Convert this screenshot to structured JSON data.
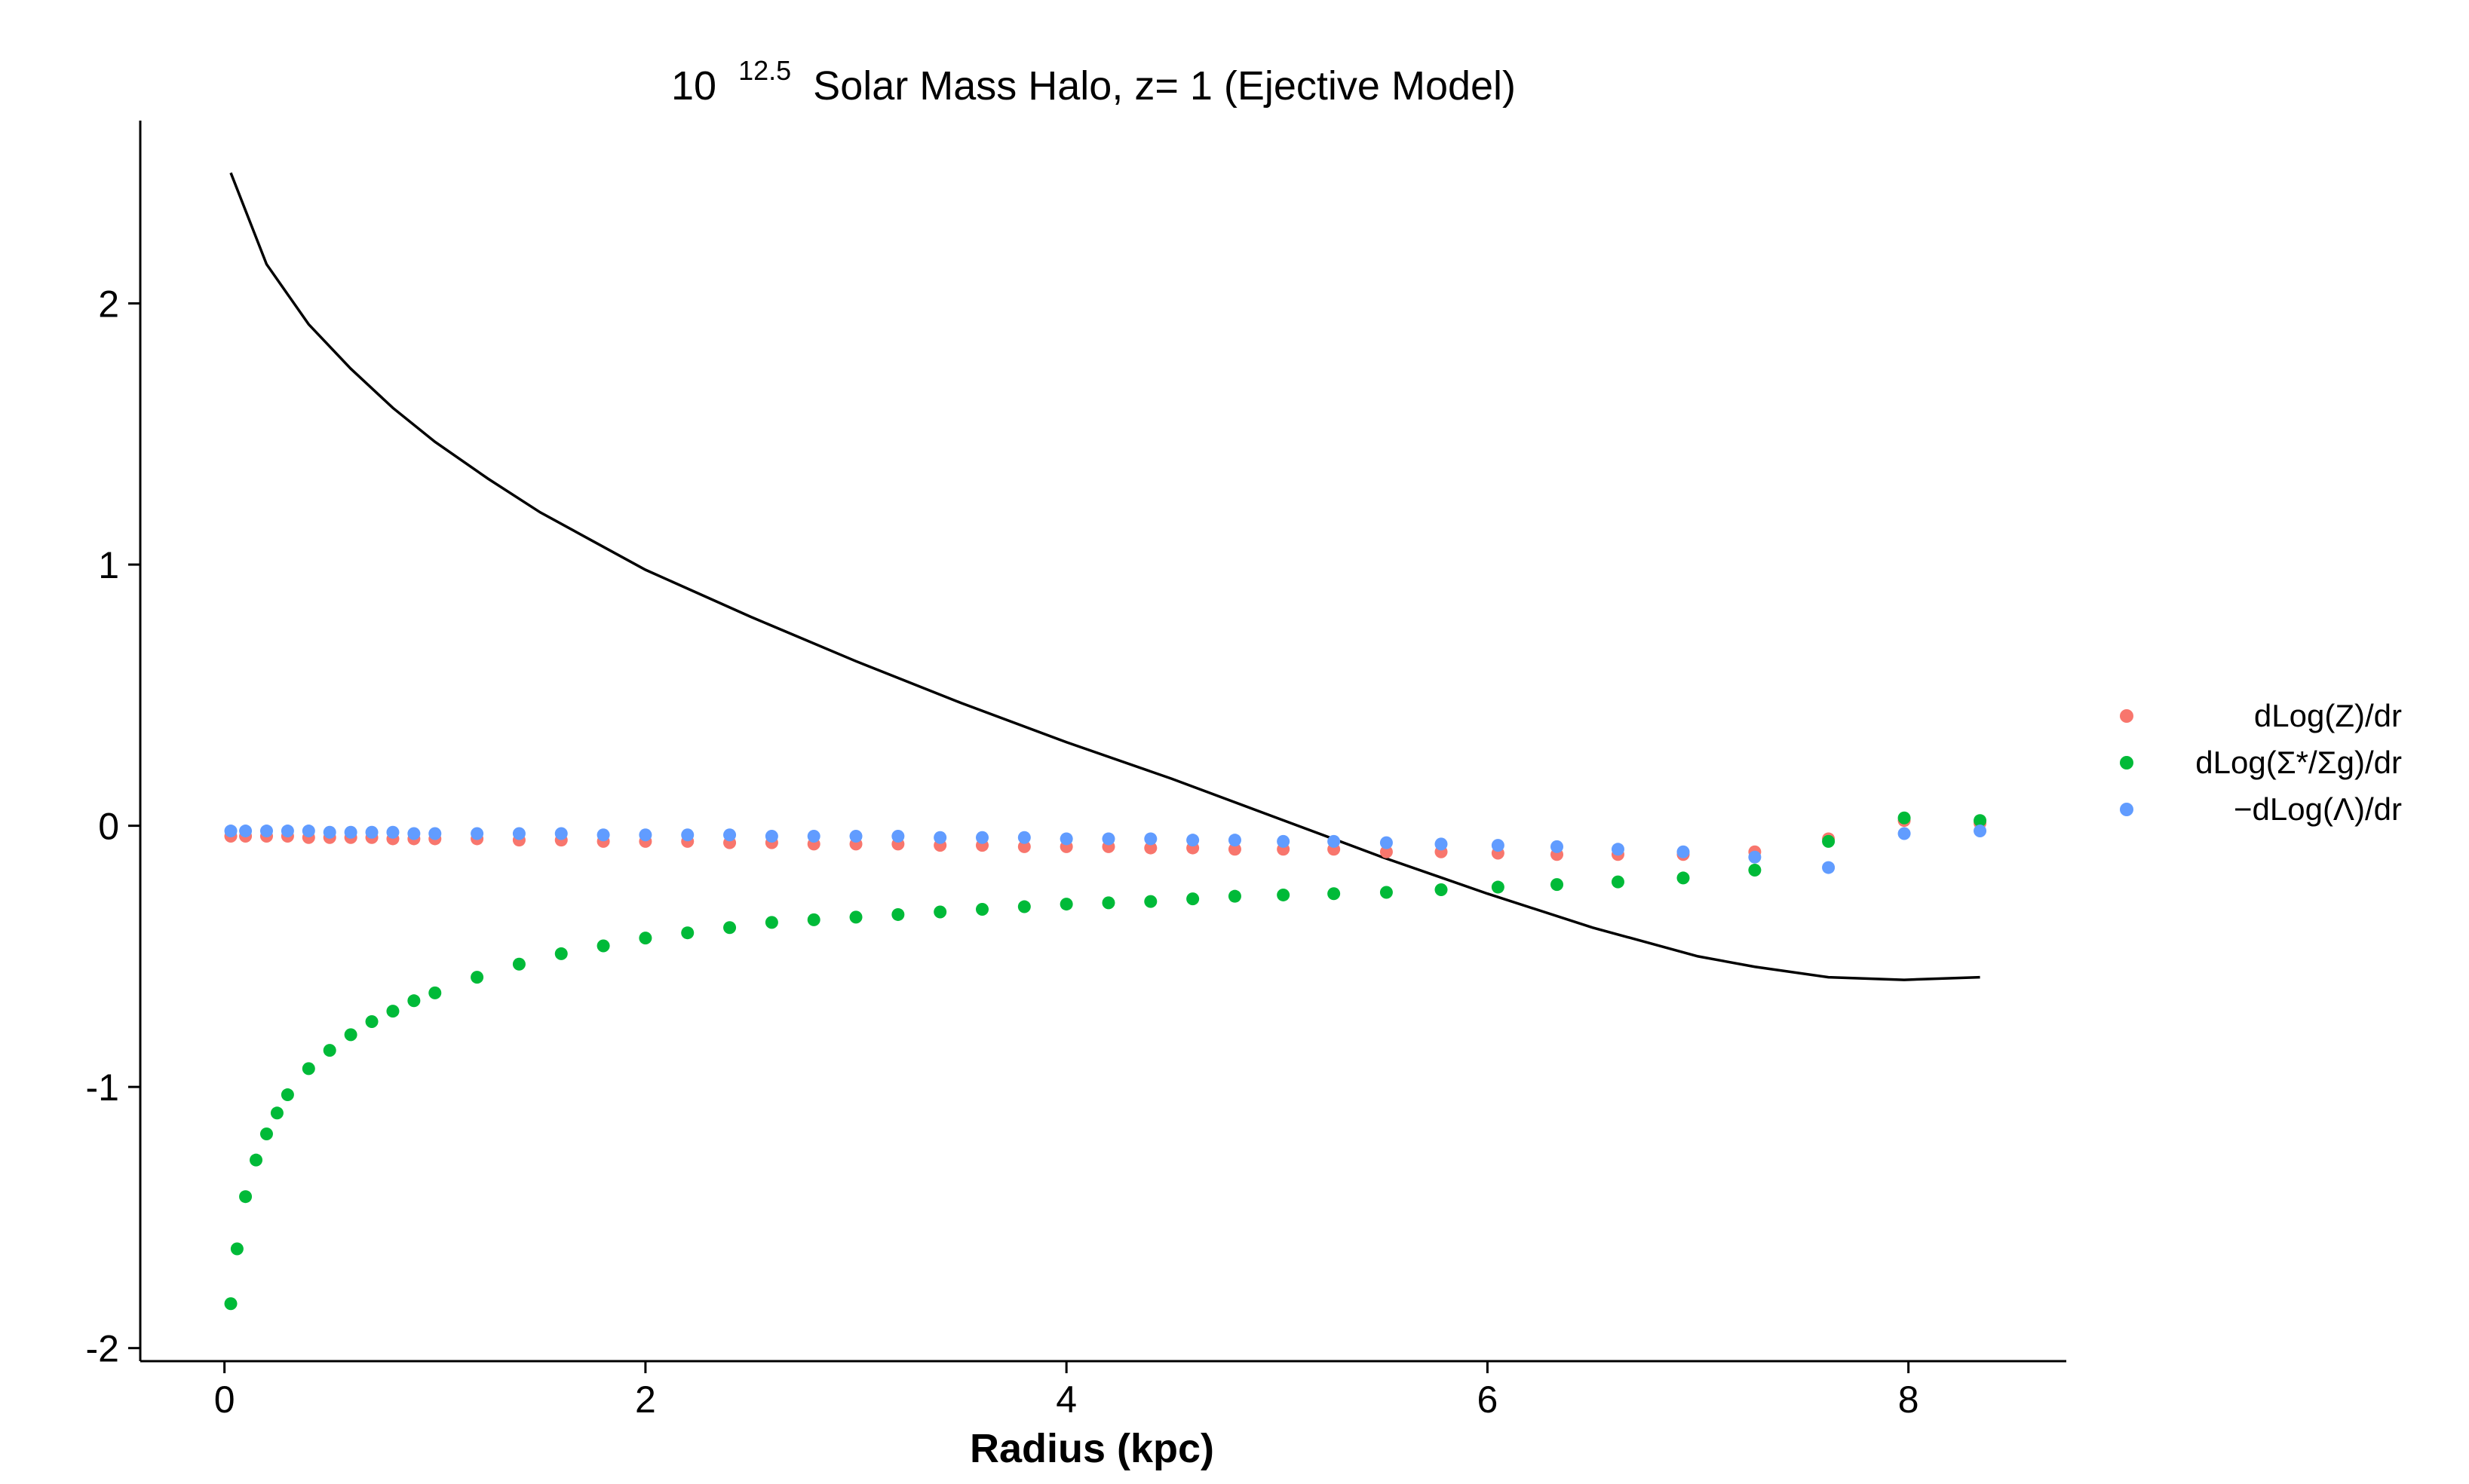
{
  "chart_data": {
    "type": "scatter",
    "title": {
      "base": "10",
      "exponent": "12.5",
      "rest": "Solar Mass Halo, z= 1 (Ejective Model)"
    },
    "xlabel": "Radius (kpc)",
    "ylabel": "",
    "xlim": [
      -0.4,
      8.75
    ],
    "ylim": [
      -2.05,
      2.7
    ],
    "xticks": [
      0,
      2,
      4,
      6,
      8
    ],
    "yticks": [
      -2,
      -1,
      0,
      1,
      2
    ],
    "xtick_labels": [
      "0",
      "2",
      "4",
      "6",
      "8"
    ],
    "ytick_labels": [
      "-2",
      "-1",
      "0",
      "1",
      "2"
    ],
    "grid": false,
    "legend_position": "right",
    "series": [
      {
        "name": "dLog(Z)/dr",
        "legend_label": "dLog(Z)/dr",
        "color": "#F8766D",
        "x": [
          0.03,
          0.1,
          0.2,
          0.3,
          0.4,
          0.5,
          0.6,
          0.7,
          0.8,
          0.9,
          1.0,
          1.2,
          1.4,
          1.6,
          1.8,
          2.0,
          2.2,
          2.4,
          2.6,
          2.8,
          3.0,
          3.2,
          3.4,
          3.6,
          3.8,
          4.0,
          4.2,
          4.4,
          4.6,
          4.8,
          5.03,
          5.27,
          5.52,
          5.78,
          6.05,
          6.33,
          6.62,
          6.93,
          7.27,
          7.62,
          7.98,
          8.34
        ],
        "y": [
          -0.04,
          -0.04,
          -0.04,
          -0.04,
          -0.045,
          -0.045,
          -0.045,
          -0.045,
          -0.05,
          -0.05,
          -0.05,
          -0.05,
          -0.055,
          -0.055,
          -0.06,
          -0.06,
          -0.06,
          -0.065,
          -0.065,
          -0.07,
          -0.07,
          -0.07,
          -0.075,
          -0.075,
          -0.08,
          -0.08,
          -0.08,
          -0.085,
          -0.085,
          -0.09,
          -0.09,
          -0.09,
          -0.1,
          -0.1,
          -0.105,
          -0.11,
          -0.11,
          -0.11,
          -0.1,
          -0.05,
          0.02,
          0.01
        ]
      },
      {
        "name": "dLog(Σ*/Σg)/dr",
        "legend_label": "dLog(Σ*/Σg)/dr",
        "color": "#00BA38",
        "x": [
          0.03,
          0.06,
          0.1,
          0.15,
          0.2,
          0.25,
          0.3,
          0.4,
          0.5,
          0.6,
          0.7,
          0.8,
          0.9,
          1.0,
          1.2,
          1.4,
          1.6,
          1.8,
          2.0,
          2.2,
          2.4,
          2.6,
          2.8,
          3.0,
          3.2,
          3.4,
          3.6,
          3.8,
          4.0,
          4.2,
          4.4,
          4.6,
          4.8,
          5.03,
          5.27,
          5.52,
          5.78,
          6.05,
          6.33,
          6.62,
          6.93,
          7.27,
          7.62,
          7.98,
          8.34
        ],
        "y": [
          -1.83,
          -1.62,
          -1.42,
          -1.28,
          -1.18,
          -1.1,
          -1.03,
          -0.93,
          -0.86,
          -0.8,
          -0.75,
          -0.71,
          -0.67,
          -0.64,
          -0.58,
          -0.53,
          -0.49,
          -0.46,
          -0.43,
          -0.41,
          -0.39,
          -0.37,
          -0.36,
          -0.35,
          -0.34,
          -0.33,
          -0.32,
          -0.31,
          -0.3,
          -0.295,
          -0.29,
          -0.28,
          -0.27,
          -0.265,
          -0.26,
          -0.255,
          -0.245,
          -0.235,
          -0.225,
          -0.215,
          -0.2,
          -0.17,
          -0.06,
          0.03,
          0.02
        ]
      },
      {
        "name": "-dLog(Λ)/dr",
        "legend_label": "−dLog(Λ)/dr",
        "color": "#619CFF",
        "x": [
          0.03,
          0.1,
          0.2,
          0.3,
          0.4,
          0.5,
          0.6,
          0.7,
          0.8,
          0.9,
          1.0,
          1.2,
          1.4,
          1.6,
          1.8,
          2.0,
          2.2,
          2.4,
          2.6,
          2.8,
          3.0,
          3.2,
          3.4,
          3.6,
          3.8,
          4.0,
          4.2,
          4.4,
          4.6,
          4.8,
          5.03,
          5.27,
          5.52,
          5.78,
          6.05,
          6.33,
          6.62,
          6.93,
          7.27,
          7.62,
          7.98,
          8.34
        ],
        "y": [
          -0.02,
          -0.02,
          -0.02,
          -0.02,
          -0.02,
          -0.025,
          -0.025,
          -0.025,
          -0.025,
          -0.03,
          -0.03,
          -0.03,
          -0.03,
          -0.03,
          -0.035,
          -0.035,
          -0.035,
          -0.035,
          -0.04,
          -0.04,
          -0.04,
          -0.04,
          -0.045,
          -0.045,
          -0.045,
          -0.05,
          -0.05,
          -0.05,
          -0.055,
          -0.055,
          -0.06,
          -0.06,
          -0.065,
          -0.07,
          -0.075,
          -0.08,
          -0.09,
          -0.1,
          -0.12,
          -0.16,
          -0.03,
          -0.02
        ]
      }
    ],
    "line": {
      "color": "#000000",
      "x": [
        0.03,
        0.2,
        0.4,
        0.6,
        0.8,
        1.0,
        1.25,
        1.5,
        1.75,
        2.0,
        2.5,
        3.0,
        3.5,
        4.0,
        4.5,
        5.0,
        5.5,
        6.0,
        6.5,
        7.0,
        7.27,
        7.62,
        7.98,
        8.34
      ],
      "y": [
        2.5,
        2.15,
        1.92,
        1.75,
        1.6,
        1.47,
        1.33,
        1.2,
        1.09,
        0.98,
        0.8,
        0.63,
        0.47,
        0.32,
        0.18,
        0.03,
        -0.12,
        -0.26,
        -0.39,
        -0.5,
        -0.54,
        -0.58,
        -0.59,
        -0.58
      ]
    }
  }
}
